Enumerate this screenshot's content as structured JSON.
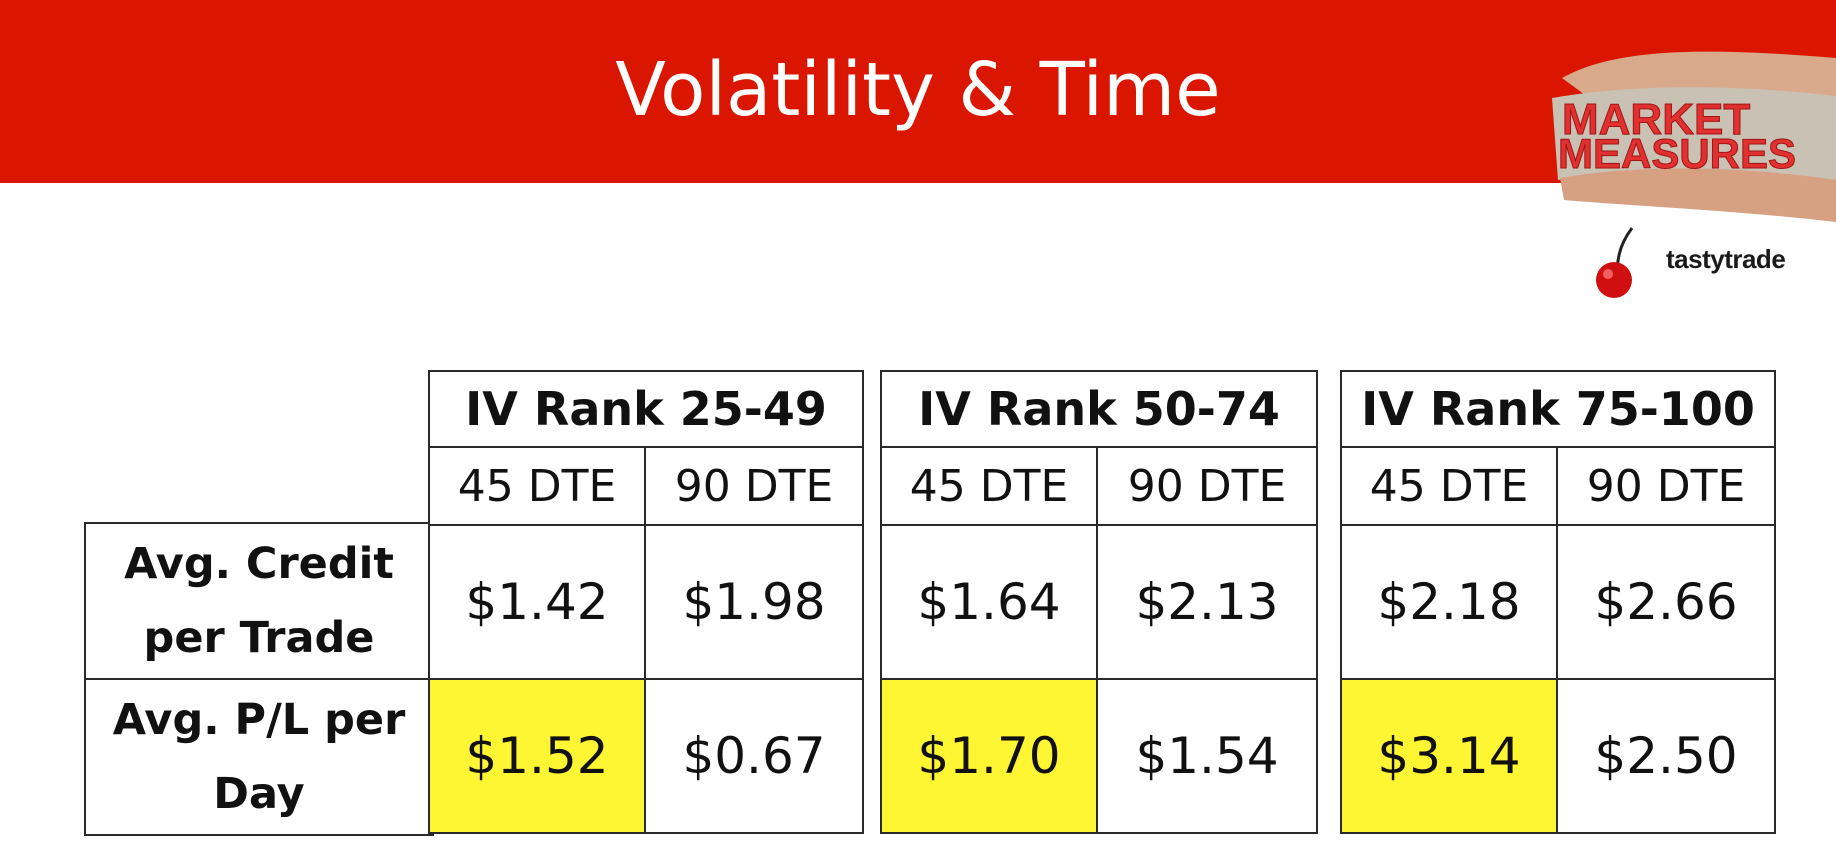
{
  "slide": {
    "title": "Volatility & Time",
    "logo_text_1": "MARKET",
    "logo_text_2": "MEASURES",
    "brand": "tastytrade"
  },
  "colors": {
    "banner": "#db1600",
    "highlight": "#fef533"
  },
  "icons": [
    "market-measures-logo",
    "cherry-icon"
  ],
  "row_labels": {
    "credit_line1": "Avg. Credit",
    "credit_line2": "per Trade",
    "pl_line1": "Avg. P/L per",
    "pl_line2": "Day"
  },
  "groups": [
    {
      "header": "IV Rank 25-49",
      "sub": [
        "45 DTE",
        "90 DTE"
      ],
      "credit": [
        "$1.42",
        "$1.98"
      ],
      "pl": [
        "$1.52",
        "$0.67"
      ]
    },
    {
      "header": "IV Rank 50-74",
      "sub": [
        "45 DTE",
        "90 DTE"
      ],
      "credit": [
        "$1.64",
        "$2.13"
      ],
      "pl": [
        "$1.70",
        "$1.54"
      ]
    },
    {
      "header": "IV Rank 75-100",
      "sub": [
        "45 DTE",
        "90 DTE"
      ],
      "credit": [
        "$2.18",
        "$2.66"
      ],
      "pl": [
        "$3.14",
        "$2.50"
      ]
    }
  ]
}
